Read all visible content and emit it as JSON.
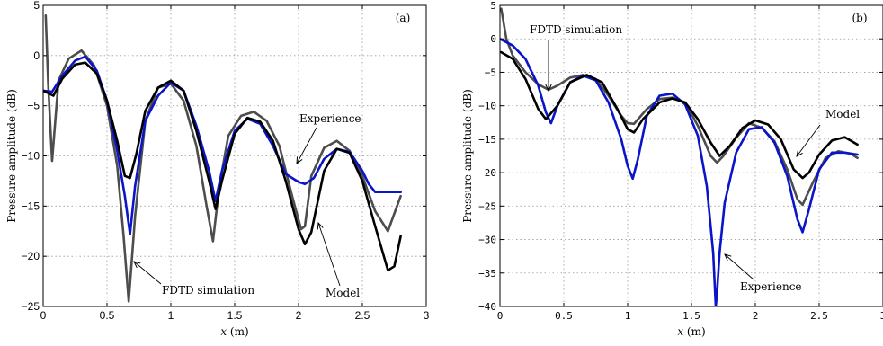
{
  "chart_data": [
    {
      "type": "line",
      "panel_label": "(a)",
      "xlabel_var": "x",
      "xlabel_unit": "(m)",
      "ylabel": "Pressure amplitude (dB)",
      "xlim": [
        0,
        3
      ],
      "ylim": [
        -25,
        5
      ],
      "xticks": [
        0,
        0.5,
        1,
        1.5,
        2,
        2.5,
        3
      ],
      "xtick_labels": [
        "0",
        "0.5",
        "1",
        "1.5",
        "2",
        "2.5",
        "3"
      ],
      "yticks": [
        -25,
        -20,
        -15,
        -10,
        -5,
        0,
        5
      ],
      "ytick_labels": [
        "−25",
        "−20",
        "−15",
        "−10",
        "−5",
        "0",
        "5"
      ],
      "grid": true,
      "series": [
        {
          "key": "fdtd",
          "color": "#4d4d4d",
          "x": [
            0.02,
            0.04,
            0.07,
            0.12,
            0.2,
            0.3,
            0.4,
            0.5,
            0.58,
            0.63,
            0.67,
            0.72,
            0.8,
            0.9,
            1.0,
            1.1,
            1.2,
            1.28,
            1.33,
            1.38,
            1.45,
            1.55,
            1.65,
            1.75,
            1.85,
            1.95,
            2.02,
            2.05,
            2.1,
            2.2,
            2.3,
            2.4,
            2.5,
            2.6,
            2.7,
            2.8
          ],
          "y": [
            4,
            -3,
            -10.5,
            -2.5,
            -0.3,
            0.5,
            -1,
            -5,
            -11,
            -18,
            -24.5,
            -16,
            -6.5,
            -3.2,
            -2.8,
            -4.5,
            -9,
            -15,
            -18.5,
            -13,
            -8,
            -6,
            -5.6,
            -6.5,
            -9,
            -14,
            -17.3,
            -17,
            -12,
            -9.2,
            -8.5,
            -9.5,
            -12,
            -15.5,
            -17.5,
            -14
          ]
        },
        {
          "key": "experience",
          "color": "#0a14c8",
          "x": [
            0.0,
            0.07,
            0.15,
            0.25,
            0.33,
            0.42,
            0.5,
            0.58,
            0.64,
            0.68,
            0.72,
            0.8,
            0.9,
            1.0,
            1.1,
            1.2,
            1.3,
            1.35,
            1.4,
            1.5,
            1.6,
            1.7,
            1.8,
            1.9,
            2.0,
            2.05,
            2.12,
            2.2,
            2.3,
            2.4,
            2.5,
            2.55,
            2.6,
            2.7,
            2.8
          ],
          "y": [
            -3.5,
            -3.6,
            -2,
            -0.5,
            -0.1,
            -1.5,
            -4.5,
            -9.5,
            -14,
            -17.8,
            -13,
            -6.5,
            -4,
            -2.7,
            -3.5,
            -7,
            -11.5,
            -14.5,
            -11.5,
            -7.5,
            -6.3,
            -6.8,
            -9,
            -11.8,
            -12.6,
            -12.8,
            -12.2,
            -10.3,
            -9.3,
            -9.6,
            -11.5,
            -12.8,
            -13.6,
            -13.6,
            -13.6
          ]
        },
        {
          "key": "model",
          "color": "#000000",
          "x": [
            0.0,
            0.08,
            0.15,
            0.25,
            0.33,
            0.42,
            0.5,
            0.58,
            0.64,
            0.68,
            0.73,
            0.8,
            0.9,
            1.0,
            1.1,
            1.2,
            1.3,
            1.35,
            1.4,
            1.5,
            1.6,
            1.7,
            1.8,
            1.9,
            2.0,
            2.05,
            2.1,
            2.2,
            2.3,
            2.4,
            2.5,
            2.6,
            2.7,
            2.75,
            2.8
          ],
          "y": [
            -3.5,
            -4,
            -2.3,
            -0.9,
            -0.7,
            -1.8,
            -4.5,
            -8.5,
            -12,
            -12.2,
            -9.8,
            -5.5,
            -3.2,
            -2.5,
            -3.5,
            -7.5,
            -12.5,
            -15.3,
            -12.5,
            -7.8,
            -6.2,
            -6.6,
            -8.5,
            -12.5,
            -17.3,
            -18.8,
            -17.6,
            -11.5,
            -9.3,
            -9.7,
            -12.5,
            -17,
            -21.4,
            -21,
            -18
          ]
        }
      ],
      "annotations": [
        {
          "text": "Experience",
          "series": "experience"
        },
        {
          "text": "FDTD simulation",
          "series": "fdtd"
        },
        {
          "text": "Model",
          "series": "model"
        }
      ]
    },
    {
      "type": "line",
      "panel_label": "(b)",
      "xlabel_var": "x",
      "xlabel_unit": "(m)",
      "ylabel": "Pressure amplitude (dB)",
      "xlim": [
        0,
        3
      ],
      "ylim": [
        -40,
        5
      ],
      "xticks": [
        0,
        0.5,
        1,
        1.5,
        2,
        2.5,
        3
      ],
      "xtick_labels": [
        "0",
        "0.5",
        "1",
        "1.5",
        "2",
        "2.5",
        "3"
      ],
      "yticks": [
        -40,
        -35,
        -30,
        -25,
        -20,
        -15,
        -10,
        -5,
        0,
        5
      ],
      "ytick_labels": [
        "−40",
        "−35",
        "−30",
        "−25",
        "−20",
        "−15",
        "−10",
        "−5",
        "0",
        "5"
      ],
      "grid": true,
      "series": [
        {
          "key": "fdtd",
          "color": "#4d4d4d",
          "x": [
            0.01,
            0.05,
            0.1,
            0.2,
            0.3,
            0.38,
            0.45,
            0.55,
            0.65,
            0.75,
            0.85,
            0.95,
            1.0,
            1.05,
            1.15,
            1.25,
            1.35,
            1.45,
            1.55,
            1.65,
            1.7,
            1.75,
            1.85,
            1.95,
            2.05,
            2.15,
            2.25,
            2.33,
            2.37,
            2.45,
            2.55,
            2.65,
            2.75,
            2.8
          ],
          "y": [
            4.5,
            0,
            -2.5,
            -5,
            -6.8,
            -7.6,
            -7,
            -5.8,
            -5.4,
            -6,
            -8.5,
            -11.5,
            -12.6,
            -12.7,
            -10.5,
            -9,
            -8.8,
            -9.5,
            -13,
            -17.5,
            -18.5,
            -17.5,
            -14.8,
            -12.6,
            -13.3,
            -15.3,
            -19.5,
            -24,
            -24.8,
            -21.5,
            -17.8,
            -16.8,
            -17.2,
            -17.8
          ]
        },
        {
          "key": "experience",
          "color": "#0a14c8",
          "x": [
            0.0,
            0.1,
            0.2,
            0.3,
            0.36,
            0.4,
            0.45,
            0.55,
            0.65,
            0.75,
            0.85,
            0.95,
            1.0,
            1.04,
            1.08,
            1.15,
            1.25,
            1.35,
            1.45,
            1.55,
            1.62,
            1.67,
            1.69,
            1.7,
            1.72,
            1.76,
            1.85,
            1.95,
            2.05,
            2.15,
            2.25,
            2.33,
            2.37,
            2.42,
            2.5,
            2.6,
            2.7,
            2.8
          ],
          "y": [
            0,
            -1,
            -3,
            -7,
            -11,
            -12.6,
            -10,
            -6.5,
            -5.5,
            -6.2,
            -9.5,
            -15,
            -19,
            -20.9,
            -18,
            -11.5,
            -8.5,
            -8.2,
            -9.8,
            -14.5,
            -22,
            -32,
            -40,
            -38,
            -32,
            -24.5,
            -17,
            -13.5,
            -13.2,
            -15.5,
            -20.5,
            -27,
            -28.9,
            -25.5,
            -19.5,
            -17,
            -17,
            -17.3
          ]
        },
        {
          "key": "model",
          "color": "#000000",
          "x": [
            0.01,
            0.1,
            0.2,
            0.3,
            0.36,
            0.45,
            0.55,
            0.68,
            0.8,
            0.92,
            1.0,
            1.05,
            1.12,
            1.25,
            1.35,
            1.45,
            1.55,
            1.65,
            1.72,
            1.8,
            1.9,
            2.0,
            2.1,
            2.2,
            2.3,
            2.37,
            2.42,
            2.5,
            2.6,
            2.7,
            2.8
          ],
          "y": [
            -2,
            -3,
            -6,
            -10.5,
            -12,
            -10,
            -6.5,
            -5.4,
            -6.5,
            -10.5,
            -13.5,
            -14,
            -12,
            -9.5,
            -8.9,
            -9.5,
            -12,
            -15.5,
            -17.5,
            -16,
            -13.3,
            -12.2,
            -12.8,
            -15,
            -19.5,
            -20.8,
            -20,
            -17.3,
            -15.2,
            -14.7,
            -15.8
          ]
        }
      ],
      "annotations": [
        {
          "text": "FDTD simulation",
          "series": "fdtd"
        },
        {
          "text": "Model",
          "series": "model"
        },
        {
          "text": "Experience",
          "series": "experience"
        }
      ]
    }
  ]
}
